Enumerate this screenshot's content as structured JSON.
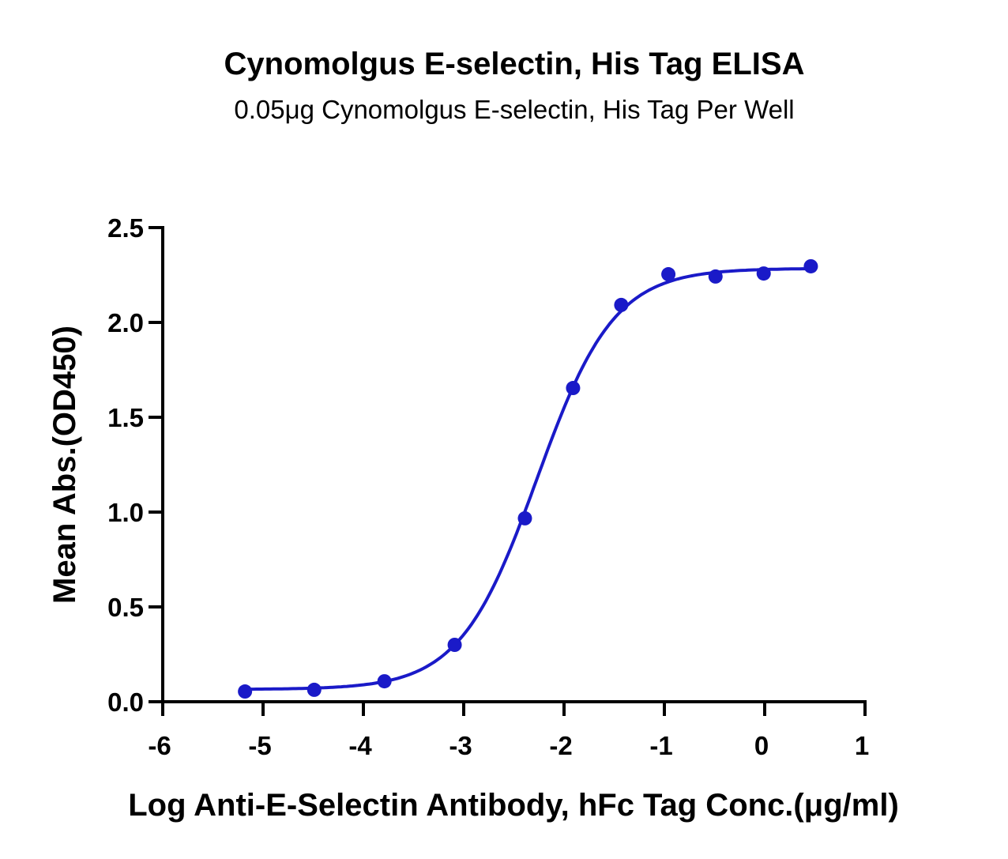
{
  "chart_data": {
    "type": "scatter",
    "title": "Cynomolgus E-selectin, His Tag ELISA",
    "subtitle": "0.05μg Cynomolgus E-selectin, His Tag Per Well",
    "xlabel": "Log Anti-E-Selectin Antibody, hFc Tag Conc.(μg/ml)",
    "ylabel": "Mean Abs.(OD450)",
    "xlim": [
      -6,
      1
    ],
    "ylim": [
      0,
      2.5
    ],
    "xticks": [
      "-6",
      "-5",
      "-4",
      "-3",
      "-2",
      "-1",
      "0",
      "1"
    ],
    "yticks": [
      "0.0",
      "0.5",
      "1.0",
      "1.5",
      "2.0",
      "2.5"
    ],
    "grid": false,
    "color": "#1a1ac8",
    "points": {
      "x": [
        -5.18,
        -4.49,
        -3.79,
        -3.09,
        -2.39,
        -1.91,
        -1.43,
        -0.96,
        -0.49,
        -0.01,
        0.46
      ],
      "y": [
        0.054,
        0.063,
        0.108,
        0.3,
        0.967,
        1.654,
        2.092,
        2.254,
        2.242,
        2.258,
        2.296
      ]
    },
    "fit": {
      "model": "4PL",
      "bottom": 0.065,
      "top": 2.285,
      "logEC50": -2.27,
      "hill": 1.13
    }
  }
}
